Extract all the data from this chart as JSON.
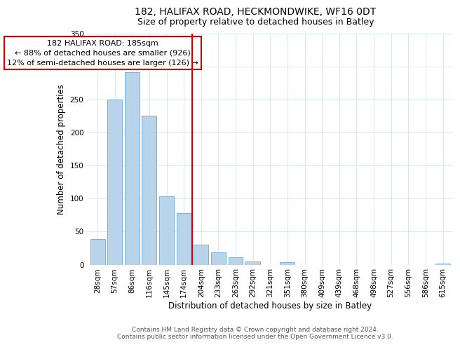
{
  "title": "182, HALIFAX ROAD, HECKMONDWIKE, WF16 0DT",
  "subtitle": "Size of property relative to detached houses in Batley",
  "xlabel": "Distribution of detached houses by size in Batley",
  "ylabel": "Number of detached properties",
  "bar_labels": [
    "28sqm",
    "57sqm",
    "86sqm",
    "116sqm",
    "145sqm",
    "174sqm",
    "204sqm",
    "233sqm",
    "263sqm",
    "292sqm",
    "321sqm",
    "351sqm",
    "380sqm",
    "409sqm",
    "439sqm",
    "468sqm",
    "498sqm",
    "527sqm",
    "556sqm",
    "586sqm",
    "615sqm"
  ],
  "bar_values": [
    39,
    250,
    291,
    225,
    103,
    78,
    30,
    19,
    11,
    5,
    0,
    4,
    0,
    0,
    0,
    0,
    0,
    0,
    0,
    0,
    2
  ],
  "bar_color": "#b8d4ea",
  "bar_edge_color": "#6aaad4",
  "marker_line_color": "#cc0000",
  "annotation_line1": "182 HALIFAX ROAD: 185sqm",
  "annotation_line2": "← 88% of detached houses are smaller (926)",
  "annotation_line3": "12% of semi-detached houses are larger (126) →",
  "annotation_box_color": "#ffffff",
  "annotation_box_edge": "#cc0000",
  "ylim": [
    0,
    350
  ],
  "yticks": [
    0,
    50,
    100,
    150,
    200,
    250,
    300,
    350
  ],
  "footer_line1": "Contains HM Land Registry data © Crown copyright and database right 2024.",
  "footer_line2": "Contains public sector information licensed under the Open Government Licence v3.0.",
  "title_fontsize": 10,
  "subtitle_fontsize": 9,
  "axis_label_fontsize": 8.5,
  "tick_fontsize": 7.5,
  "annotation_fontsize": 8,
  "footer_fontsize": 6.5,
  "background_color": "#ffffff",
  "grid_color": "#d8e8f0"
}
